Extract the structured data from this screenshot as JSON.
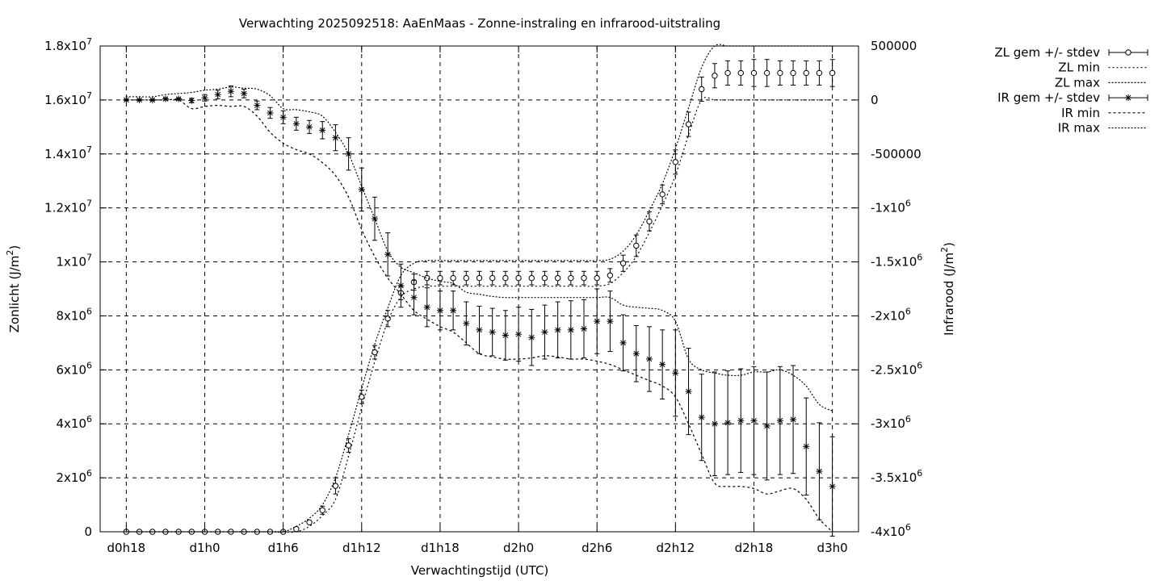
{
  "chart_data": {
    "type": "line",
    "title": "Verwachting 2025092518: AaEnMaas - Zonne-instraling en infrarood-uitstraling",
    "xlabel": "Verwachtingstijd (UTC)",
    "ylabel": "Zonlicht (J/m²)",
    "y2label": "Infrarood (J/m²)",
    "x_ticks": [
      {
        "label": "d0h18",
        "value": 0
      },
      {
        "label": "d1h0",
        "value": 6
      },
      {
        "label": "d1h6",
        "value": 12
      },
      {
        "label": "d1h12",
        "value": 18
      },
      {
        "label": "d1h18",
        "value": 24
      },
      {
        "label": "d2h0",
        "value": 30
      },
      {
        "label": "d2h6",
        "value": 36
      },
      {
        "label": "d2h12",
        "value": 42
      },
      {
        "label": "d2h18",
        "value": 48
      },
      {
        "label": "d3h0",
        "value": 54
      }
    ],
    "y_ticks": [
      {
        "value": 0,
        "base": "0",
        "exp": ""
      },
      {
        "value": 2000000,
        "base": "2x10",
        "exp": "6"
      },
      {
        "value": 4000000,
        "base": "4x10",
        "exp": "6"
      },
      {
        "value": 6000000,
        "base": "6x10",
        "exp": "6"
      },
      {
        "value": 8000000,
        "base": "8x10",
        "exp": "6"
      },
      {
        "value": 10000000,
        "base": "1x10",
        "exp": "7"
      },
      {
        "value": 12000000,
        "base": "1.2x10",
        "exp": "7"
      },
      {
        "value": 14000000,
        "base": "1.4x10",
        "exp": "7"
      },
      {
        "value": 16000000,
        "base": "1.6x10",
        "exp": "7"
      },
      {
        "value": 18000000,
        "base": "1.8x10",
        "exp": "7"
      }
    ],
    "y2_ticks": [
      {
        "value": 500000,
        "base": "500000",
        "exp": ""
      },
      {
        "value": 0,
        "base": "0",
        "exp": ""
      },
      {
        "value": -500000,
        "base": "-500000",
        "exp": ""
      },
      {
        "value": -1000000,
        "base": "-1x10",
        "exp": "6"
      },
      {
        "value": -1500000,
        "base": "-1.5x10",
        "exp": "6"
      },
      {
        "value": -2000000,
        "base": "-2x10",
        "exp": "6"
      },
      {
        "value": -2500000,
        "base": "-2.5x10",
        "exp": "6"
      },
      {
        "value": -3000000,
        "base": "-3x10",
        "exp": "6"
      },
      {
        "value": -3500000,
        "base": "-3.5x10",
        "exp": "6"
      },
      {
        "value": -4000000,
        "base": "-4x10",
        "exp": "6"
      }
    ],
    "xlim": [
      -2,
      56
    ],
    "ylim": [
      0,
      18000000
    ],
    "y2lim": [
      -4000000,
      500000
    ],
    "grid": true,
    "legend_position": "outside-top-right",
    "x": [
      0,
      1,
      2,
      3,
      4,
      5,
      6,
      7,
      8,
      9,
      10,
      11,
      12,
      13,
      14,
      15,
      16,
      17,
      18,
      19,
      20,
      21,
      22,
      23,
      24,
      25,
      26,
      27,
      28,
      29,
      30,
      31,
      32,
      33,
      34,
      35,
      36,
      37,
      38,
      39,
      40,
      41,
      42,
      43,
      44,
      45,
      46,
      47,
      48,
      49,
      50,
      51,
      52,
      53,
      54
    ],
    "series": [
      {
        "name": "ZL gem +/- stdev",
        "axis": "y",
        "marker": "circle",
        "values": [
          0,
          0,
          0,
          0,
          0,
          0,
          0,
          0,
          0,
          0,
          0,
          0,
          0,
          100000,
          350000,
          800000,
          1700000,
          3200000,
          5000000,
          6650000,
          7900000,
          8850000,
          9250000,
          9400000,
          9400000,
          9400000,
          9400000,
          9400000,
          9400000,
          9400000,
          9400000,
          9400000,
          9400000,
          9400000,
          9400000,
          9400000,
          9400000,
          9500000,
          9950000,
          10600000,
          11500000,
          12500000,
          13700000,
          15100000,
          16400000,
          16900000,
          17000000,
          17000000,
          17000000,
          17000000,
          17000000,
          17000000,
          17000000,
          17000000,
          17000000
        ],
        "stdev": [
          0,
          0,
          0,
          0,
          0,
          0,
          0,
          0,
          0,
          0,
          0,
          0,
          0,
          0,
          50000,
          150000,
          300000,
          250000,
          250000,
          250000,
          300000,
          250000,
          300000,
          250000,
          250000,
          250000,
          250000,
          250000,
          250000,
          250000,
          250000,
          250000,
          250000,
          250000,
          250000,
          250000,
          250000,
          250000,
          300000,
          400000,
          350000,
          350000,
          450000,
          450000,
          450000,
          450000,
          450000,
          450000,
          500000,
          500000,
          450000,
          450000,
          450000,
          450000,
          500000
        ]
      },
      {
        "name": "ZL min",
        "axis": "y",
        "style": "dotted",
        "values": [
          0,
          0,
          0,
          0,
          0,
          0,
          0,
          0,
          0,
          0,
          0,
          0,
          0,
          0,
          200000,
          600000,
          1200000,
          2800000,
          4600000,
          6300000,
          7800000,
          8700000,
          9000000,
          9100000,
          9100000,
          9100000,
          9100000,
          9100000,
          9100000,
          9100000,
          9100000,
          9100000,
          9100000,
          9100000,
          9100000,
          9100000,
          9100000,
          9200000,
          9600000,
          10200000,
          11100000,
          12100000,
          13200000,
          14700000,
          16000000,
          16000000,
          16000000,
          16000000,
          16000000,
          16000000,
          16000000,
          16000000,
          16000000,
          16000000,
          16000000
        ]
      },
      {
        "name": "ZL max",
        "axis": "y",
        "style": "dotted",
        "values": [
          0,
          0,
          0,
          0,
          0,
          0,
          0,
          0,
          0,
          0,
          0,
          0,
          0,
          200000,
          500000,
          1000000,
          2000000,
          3600000,
          5300000,
          6950000,
          8300000,
          9500000,
          9950000,
          10050000,
          10050000,
          10050000,
          10050000,
          10050000,
          10050000,
          10050000,
          10050000,
          10050000,
          10050000,
          10050000,
          10050000,
          10050000,
          10050000,
          10100000,
          10400000,
          11000000,
          11900000,
          12900000,
          14200000,
          15700000,
          17200000,
          18000000,
          18000000,
          18000000,
          18000000,
          18000000,
          18000000,
          18000000,
          18000000,
          18000000,
          18000000
        ]
      },
      {
        "name": "IR gem +/- stdev",
        "axis": "y2",
        "marker": "star",
        "values": [
          0,
          0,
          0,
          10000,
          10000,
          -5000,
          20000,
          50000,
          80000,
          60000,
          -50000,
          -120000,
          -160000,
          -220000,
          -250000,
          -280000,
          -350000,
          -500000,
          -830000,
          -1100000,
          -1430000,
          -1720000,
          -1830000,
          -1920000,
          -1950000,
          -1950000,
          -2070000,
          -2130000,
          -2150000,
          -2180000,
          -2170000,
          -2200000,
          -2150000,
          -2130000,
          -2130000,
          -2120000,
          -2050000,
          -2050000,
          -2250000,
          -2350000,
          -2400000,
          -2450000,
          -2530000,
          -2700000,
          -2940000,
          -3000000,
          -2990000,
          -2970000,
          -2970000,
          -3020000,
          -2970000,
          -2960000,
          -3210000,
          -3440000,
          -3580000
        ],
        "stdev": [
          5000,
          5000,
          5000,
          10000,
          10000,
          20000,
          30000,
          40000,
          50000,
          40000,
          40000,
          50000,
          60000,
          60000,
          60000,
          80000,
          120000,
          150000,
          200000,
          200000,
          200000,
          200000,
          160000,
          180000,
          180000,
          180000,
          200000,
          220000,
          220000,
          230000,
          250000,
          260000,
          250000,
          260000,
          270000,
          270000,
          300000,
          280000,
          260000,
          260000,
          300000,
          320000,
          400000,
          400000,
          400000,
          480000,
          480000,
          480000,
          500000,
          500000,
          500000,
          500000,
          450000,
          450000,
          460000
        ]
      },
      {
        "name": "IR min",
        "axis": "y2",
        "style": "dotted",
        "values": [
          0,
          0,
          0,
          0,
          0,
          -80000,
          -60000,
          -50000,
          -60000,
          -60000,
          -150000,
          -300000,
          -400000,
          -460000,
          -500000,
          -580000,
          -700000,
          -900000,
          -1200000,
          -1450000,
          -1650000,
          -1800000,
          -1950000,
          -2030000,
          -2100000,
          -2150000,
          -2250000,
          -2350000,
          -2380000,
          -2400000,
          -2400000,
          -2390000,
          -2370000,
          -2380000,
          -2400000,
          -2400000,
          -2420000,
          -2450000,
          -2500000,
          -2550000,
          -2600000,
          -2650000,
          -2750000,
          -3000000,
          -3280000,
          -3550000,
          -3580000,
          -3580000,
          -3600000,
          -3650000,
          -3620000,
          -3600000,
          -3700000,
          -3880000,
          -4000000
        ]
      },
      {
        "name": "IR max",
        "axis": "y2",
        "style": "dotted",
        "values": [
          30000,
          30000,
          30000,
          50000,
          60000,
          70000,
          90000,
          100000,
          120000,
          110000,
          100000,
          40000,
          -80000,
          -90000,
          -110000,
          -150000,
          -300000,
          -500000,
          -800000,
          -1100000,
          -1400000,
          -1550000,
          -1600000,
          -1650000,
          -1680000,
          -1700000,
          -1780000,
          -1800000,
          -1820000,
          -1830000,
          -1830000,
          -1830000,
          -1830000,
          -1830000,
          -1830000,
          -1830000,
          -1830000,
          -1830000,
          -1900000,
          -1920000,
          -1930000,
          -1950000,
          -2050000,
          -2400000,
          -2500000,
          -2530000,
          -2550000,
          -2550000,
          -2520000,
          -2520000,
          -2500000,
          -2550000,
          -2650000,
          -2820000,
          -2880000
        ]
      }
    ]
  }
}
